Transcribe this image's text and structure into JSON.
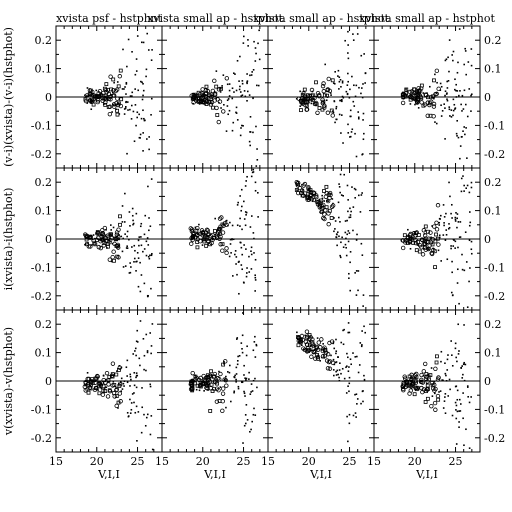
{
  "chart_data": {
    "type": "scatter",
    "layout": {
      "rows": 3,
      "cols": 4
    },
    "panel_titles": [
      "xvista psf - hstphot",
      "xvista small ap - hstphot",
      "xvista small ap - hstphot",
      "xvista small ap - hstphot"
    ],
    "row_ylabels": [
      "(v-i)(xvista)-(v-i)(hstphot)",
      "i(xvista)-i(hstphot)",
      "v(xvista)-v(hstphot)"
    ],
    "xlabel": "V,I,I",
    "xlim": [
      15,
      28
    ],
    "ylim": [
      -0.25,
      0.25
    ],
    "x_ticks": [
      15,
      20,
      25
    ],
    "x_tick_labels": [
      "15",
      "20",
      "25"
    ],
    "y_ticks": [
      -0.2,
      -0.1,
      0,
      0.1,
      0.2
    ],
    "y_tick_labels": [
      "-0.2",
      "-0.1",
      "0",
      "0.1",
      "0.2"
    ],
    "reference_line_y": 0,
    "panels": [
      {
        "row": 0,
        "col": 0,
        "offset": 0.0,
        "seed": 11
      },
      {
        "row": 0,
        "col": 1,
        "offset": 0.0,
        "seed": 12
      },
      {
        "row": 0,
        "col": 2,
        "offset": -0.01,
        "seed": 13
      },
      {
        "row": 0,
        "col": 3,
        "offset": 0.0,
        "seed": 14
      },
      {
        "row": 1,
        "col": 0,
        "offset": 0.0,
        "seed": 21
      },
      {
        "row": 1,
        "col": 1,
        "offset": 0.01,
        "seed": 22
      },
      {
        "row": 1,
        "col": 2,
        "offset": 0.19,
        "seed": 23
      },
      {
        "row": 1,
        "col": 3,
        "offset": 0.0,
        "seed": 24
      },
      {
        "row": 2,
        "col": 0,
        "offset": -0.01,
        "seed": 31
      },
      {
        "row": 2,
        "col": 1,
        "offset": -0.01,
        "seed": 32
      },
      {
        "row": 2,
        "col": 2,
        "offset": 0.16,
        "seed": 33
      },
      {
        "row": 2,
        "col": 3,
        "offset": -0.01,
        "seed": 34
      }
    ]
  }
}
